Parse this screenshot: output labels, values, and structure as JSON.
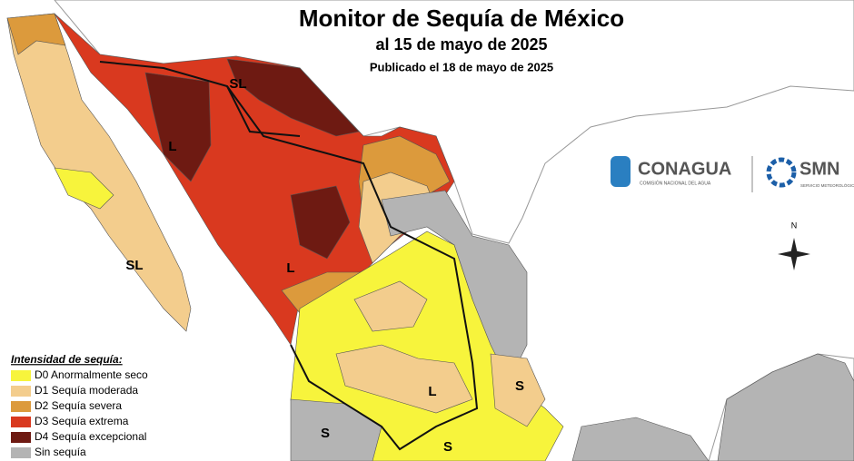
{
  "header": {
    "title": "Monitor de Sequía de México",
    "subtitle": "al 15 de mayo de 2025",
    "published": "Publicado el 18 de mayo de 2025"
  },
  "legend": {
    "title": "Intensidad de sequía:",
    "items": [
      {
        "label": "D0 Anormalmente seco",
        "color": "#f7f43c"
      },
      {
        "label": "D1 Sequía moderada",
        "color": "#f3cd8d"
      },
      {
        "label": "D2 Sequía severa",
        "color": "#dc9a3c"
      },
      {
        "label": "D3 Sequía extrema",
        "color": "#d9391f"
      },
      {
        "label": "D4 Sequía excepcional",
        "color": "#6e1a12"
      },
      {
        "label": "Sin sequía",
        "color": "#b4b4b4"
      }
    ]
  },
  "map_labels": [
    "SL",
    "L",
    "L",
    "SL",
    "L",
    "S",
    "S",
    "S"
  ],
  "logos": {
    "conagua": "CONAGUA",
    "conagua_sub": "COMISIÓN NACIONAL DEL AGUA",
    "smn": "SMN",
    "smn_sub": "SERVICIO METEOROLÓGICO NACIONAL"
  },
  "compass": "N"
}
